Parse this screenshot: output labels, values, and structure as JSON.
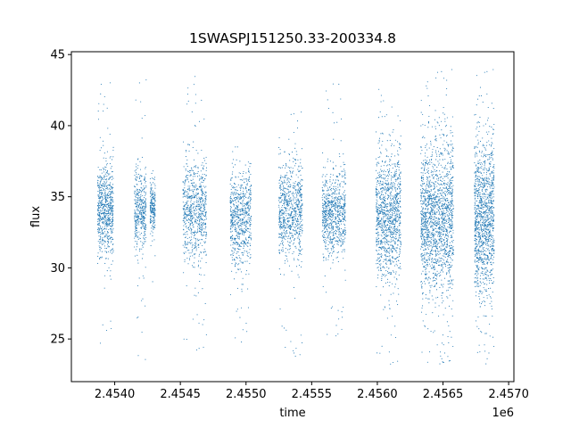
{
  "chart_data": {
    "type": "scatter",
    "title": "1SWASPJ151250.33-200334.8",
    "xlabel": "time",
    "ylabel": "flux",
    "x_offset_label": "1e6",
    "xlim": [
      2453670,
      2457040
    ],
    "ylim": [
      22,
      45.2
    ],
    "x_ticks": [
      2454000,
      2454500,
      2455000,
      2455500,
      2456000,
      2456500,
      2457000
    ],
    "x_tick_labels": [
      "2.4540",
      "2.4545",
      "2.4550",
      "2.4555",
      "2.4560",
      "2.4565",
      "2.4570"
    ],
    "y_ticks": [
      25,
      30,
      35,
      40,
      45
    ],
    "y_tick_labels": [
      "25",
      "30",
      "35",
      "40",
      "45"
    ],
    "grid": false,
    "legend": "none",
    "point_color": "#1f77b4",
    "series": [
      {
        "segments": [
          {
            "x_range": [
              2453870,
              2453990
            ],
            "median": 34.0,
            "spread": 1.6,
            "min": 24.0,
            "max": 43.5,
            "n": 700
          },
          {
            "x_range": [
              2454150,
              2454240
            ],
            "median": 34.0,
            "spread": 1.4,
            "min": 23.5,
            "max": 43.5,
            "n": 420
          },
          {
            "x_range": [
              2454270,
              2454310
            ],
            "median": 34.2,
            "spread": 0.9,
            "min": 29.0,
            "max": 37.0,
            "n": 200
          },
          {
            "x_range": [
              2454520,
              2454700
            ],
            "median": 34.0,
            "spread": 1.7,
            "min": 24.0,
            "max": 43.5,
            "n": 750
          },
          {
            "x_range": [
              2454880,
              2455040
            ],
            "median": 33.5,
            "spread": 1.6,
            "min": 24.0,
            "max": 38.5,
            "n": 700
          },
          {
            "x_range": [
              2455250,
              2455430
            ],
            "median": 34.0,
            "spread": 1.6,
            "min": 23.5,
            "max": 41.0,
            "n": 800
          },
          {
            "x_range": [
              2455580,
              2455760
            ],
            "median": 33.8,
            "spread": 1.5,
            "min": 25.0,
            "max": 43.5,
            "n": 800
          },
          {
            "x_range": [
              2455990,
              2456180
            ],
            "median": 33.7,
            "spread": 2.1,
            "min": 23.0,
            "max": 43.0,
            "n": 1150
          },
          {
            "x_range": [
              2456330,
              2456580
            ],
            "median": 33.5,
            "spread": 2.6,
            "min": 23.0,
            "max": 44.0,
            "n": 1700
          },
          {
            "x_range": [
              2456740,
              2456890
            ],
            "median": 33.5,
            "spread": 2.6,
            "min": 23.0,
            "max": 44.0,
            "n": 1250
          }
        ]
      }
    ]
  }
}
